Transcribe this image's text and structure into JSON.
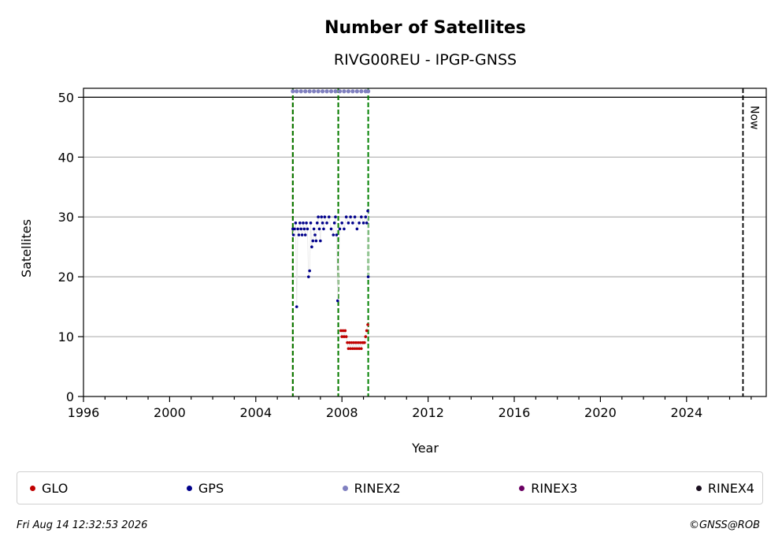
{
  "chart_data": {
    "type": "scatter",
    "title": "Number of Satellites",
    "subtitle": "RIVG00REU - IPGP-GNSS",
    "xlabel": "Year",
    "ylabel": "Satellites",
    "xlim": [
      1996,
      2027.7
    ],
    "ylim": [
      0,
      51.5
    ],
    "xticks": [
      1996,
      2000,
      2004,
      2008,
      2012,
      2016,
      2020,
      2024
    ],
    "yticks": [
      0,
      10,
      20,
      30,
      40,
      50
    ],
    "grid_y": true,
    "reference_line_y": 50,
    "now_line": {
      "x": 2026.62,
      "label": "Now"
    },
    "vlines": [
      {
        "x": 2005.72,
        "color": "#c00000",
        "style": "dashed"
      },
      {
        "x": 2005.72,
        "color": "#008000",
        "style": "dashed"
      },
      {
        "x": 2007.83,
        "color": "#c00000",
        "style": "dashed"
      },
      {
        "x": 2007.83,
        "color": "#008000",
        "style": "dashed"
      },
      {
        "x": 2009.22,
        "color": "#008000",
        "style": "dashed"
      }
    ],
    "series": [
      {
        "name": "GLO",
        "color": "#c00000",
        "points": [
          [
            2007.95,
            11
          ],
          [
            2008.0,
            10
          ],
          [
            2008.05,
            11
          ],
          [
            2008.1,
            10
          ],
          [
            2008.15,
            11
          ],
          [
            2008.2,
            10
          ],
          [
            2008.25,
            9
          ],
          [
            2008.3,
            8
          ],
          [
            2008.35,
            9
          ],
          [
            2008.4,
            8
          ],
          [
            2008.45,
            9
          ],
          [
            2008.5,
            8
          ],
          [
            2008.55,
            9
          ],
          [
            2008.6,
            8
          ],
          [
            2008.65,
            9
          ],
          [
            2008.7,
            8
          ],
          [
            2008.75,
            9
          ],
          [
            2008.8,
            8
          ],
          [
            2008.85,
            9
          ],
          [
            2008.9,
            8
          ],
          [
            2008.95,
            9
          ],
          [
            2009.0,
            9
          ],
          [
            2009.05,
            9
          ],
          [
            2009.1,
            10
          ],
          [
            2009.15,
            11
          ],
          [
            2009.2,
            12
          ]
        ]
      },
      {
        "name": "GPS",
        "color": "#00008b",
        "points": [
          [
            2005.72,
            28
          ],
          [
            2005.75,
            27
          ],
          [
            2005.8,
            28
          ],
          [
            2005.85,
            29
          ],
          [
            2005.9,
            15
          ],
          [
            2005.95,
            28
          ],
          [
            2006.0,
            27
          ],
          [
            2006.05,
            29
          ],
          [
            2006.1,
            28
          ],
          [
            2006.15,
            27
          ],
          [
            2006.2,
            29
          ],
          [
            2006.25,
            28
          ],
          [
            2006.3,
            27
          ],
          [
            2006.35,
            29
          ],
          [
            2006.4,
            28
          ],
          [
            2006.45,
            20
          ],
          [
            2006.5,
            21
          ],
          [
            2006.55,
            29
          ],
          [
            2006.6,
            25
          ],
          [
            2006.65,
            26
          ],
          [
            2006.7,
            28
          ],
          [
            2006.75,
            27
          ],
          [
            2006.8,
            26
          ],
          [
            2006.85,
            29
          ],
          [
            2006.9,
            30
          ],
          [
            2006.95,
            28
          ],
          [
            2007.0,
            26
          ],
          [
            2007.05,
            30
          ],
          [
            2007.1,
            29
          ],
          [
            2007.15,
            28
          ],
          [
            2007.2,
            30
          ],
          [
            2007.3,
            29
          ],
          [
            2007.4,
            30
          ],
          [
            2007.5,
            28
          ],
          [
            2007.6,
            27
          ],
          [
            2007.65,
            29
          ],
          [
            2007.7,
            30
          ],
          [
            2007.75,
            27
          ],
          [
            2007.8,
            16
          ],
          [
            2007.9,
            28
          ],
          [
            2008.0,
            29
          ],
          [
            2008.1,
            28
          ],
          [
            2008.2,
            30
          ],
          [
            2008.3,
            29
          ],
          [
            2008.4,
            30
          ],
          [
            2008.5,
            29
          ],
          [
            2008.6,
            30
          ],
          [
            2008.7,
            28
          ],
          [
            2008.8,
            29
          ],
          [
            2008.9,
            30
          ],
          [
            2009.0,
            29
          ],
          [
            2009.1,
            30
          ],
          [
            2009.15,
            29
          ],
          [
            2009.2,
            31
          ],
          [
            2009.22,
            20
          ]
        ]
      },
      {
        "name": "RINEX2",
        "color": "#8080c0",
        "points": [
          [
            2005.72,
            51
          ],
          [
            2005.9,
            51
          ],
          [
            2006.1,
            51
          ],
          [
            2006.3,
            51
          ],
          [
            2006.5,
            51
          ],
          [
            2006.7,
            51
          ],
          [
            2006.9,
            51
          ],
          [
            2007.1,
            51
          ],
          [
            2007.3,
            51
          ],
          [
            2007.5,
            51
          ],
          [
            2007.7,
            51
          ],
          [
            2007.9,
            51
          ],
          [
            2008.1,
            51
          ],
          [
            2008.3,
            51
          ],
          [
            2008.5,
            51
          ],
          [
            2008.7,
            51
          ],
          [
            2008.9,
            51
          ],
          [
            2009.1,
            51
          ],
          [
            2009.22,
            51
          ]
        ]
      },
      {
        "name": "RINEX3",
        "color": "#6b0063",
        "points": []
      },
      {
        "name": "RINEX4",
        "color": "#1a0f1f",
        "points": []
      }
    ]
  },
  "legend": [
    {
      "label": "GLO",
      "color": "#c00000"
    },
    {
      "label": "GPS",
      "color": "#00008b"
    },
    {
      "label": "RINEX2",
      "color": "#8080c0"
    },
    {
      "label": "RINEX3",
      "color": "#6b0063"
    },
    {
      "label": "RINEX4",
      "color": "#1a0f1f"
    }
  ],
  "footer": {
    "timestamp": "Fri Aug 14 12:32:53 2026",
    "credit": "©GNSS@ROB"
  }
}
